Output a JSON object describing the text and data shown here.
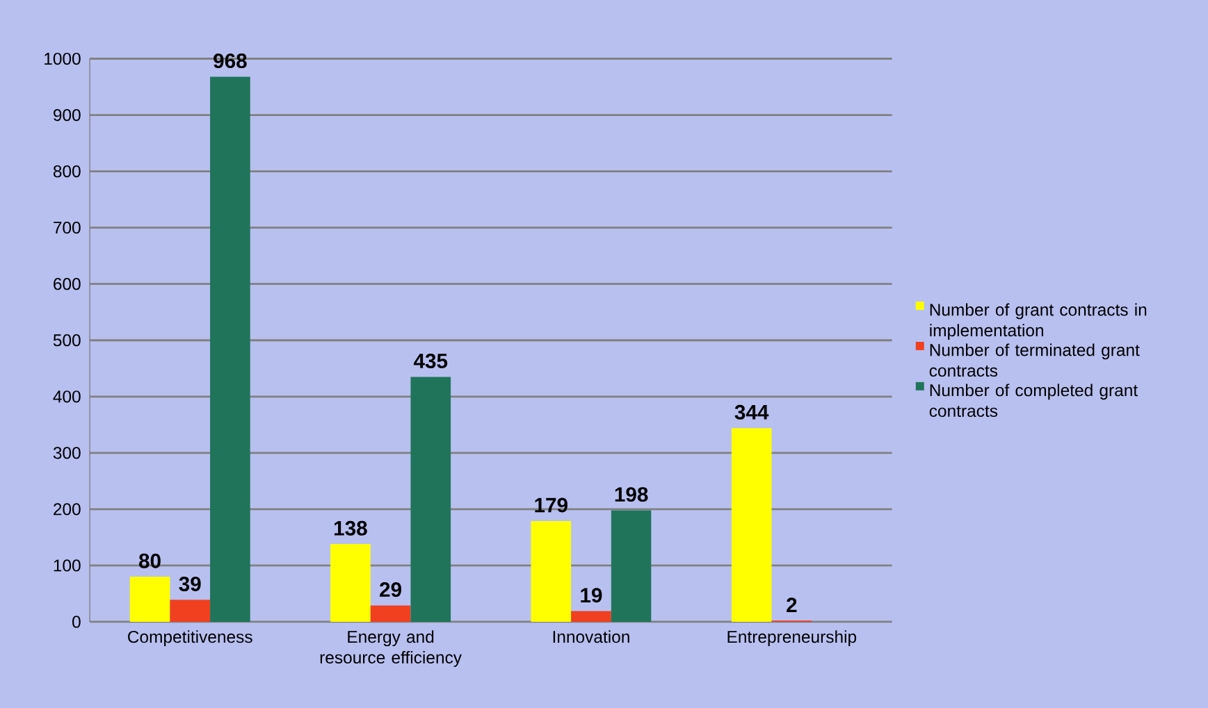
{
  "chart_data": {
    "type": "bar",
    "categories": [
      "Competitiveness",
      "Energy and resource efficiency",
      "Innovation",
      "Entrepreneurship"
    ],
    "series": [
      {
        "name": "Number of grant contracts in implementation",
        "color": "#ffff00",
        "values": [
          80,
          138,
          179,
          344
        ]
      },
      {
        "name": "Number of terminated grant contracts",
        "color": "#f04020",
        "values": [
          39,
          29,
          19,
          2
        ]
      },
      {
        "name": "Number of completed grant contracts",
        "color": "#20745a",
        "values": [
          968,
          435,
          198,
          null
        ]
      }
    ],
    "ylim": [
      0,
      1000
    ],
    "yticks": [
      0,
      100,
      200,
      300,
      400,
      500,
      600,
      700,
      800,
      900,
      1000
    ],
    "grid": "y",
    "legend": "right",
    "data_labels": true
  }
}
